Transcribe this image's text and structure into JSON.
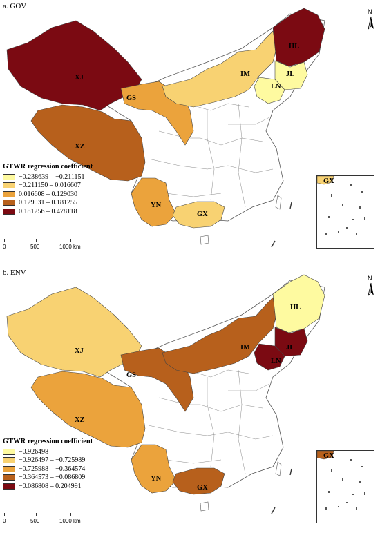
{
  "panels": [
    {
      "title": "a. GOV",
      "legend": {
        "title": "GTWR regression coefficient",
        "classes": [
          {
            "label": "−0.238639 – −0.211151",
            "color": "#fefaa0"
          },
          {
            "label": "−0.211150 – 0.016607",
            "color": "#f8d272"
          },
          {
            "label": "0.016608 – 0.129030",
            "color": "#eba33c"
          },
          {
            "label": "0.129031 – 0.181255",
            "color": "#b7601c"
          },
          {
            "label": "0.181256 – 0.478118",
            "color": "#7b0a12"
          }
        ]
      },
      "regions": {
        "HL": "#7b0a12",
        "JL": "#fefaa0",
        "LN": "#fefaa0",
        "IM": "#f8d272",
        "GS": "#eba33c",
        "XJ": "#7b0a12",
        "XZ": "#b7601c",
        "YN": "#eba33c",
        "GX": "#f8d272"
      },
      "inset_label": "GX",
      "inset_color": "#f8d272"
    },
    {
      "title": "b. ENV",
      "legend": {
        "title": "GTWR regression coefficient",
        "classes": [
          {
            "label": "−0.926498",
            "color": "#fefaa0"
          },
          {
            "label": "−0.926497 – −0.725989",
            "color": "#f8d272"
          },
          {
            "label": "−0.725988 – −0.364574",
            "color": "#eba33c"
          },
          {
            "label": "−0.364573 – −0.086809",
            "color": "#b7601c"
          },
          {
            "label": "−0.086808 – 0.204991",
            "color": "#7b0a12"
          }
        ]
      },
      "regions": {
        "HL": "#fefaa0",
        "JL": "#7b0a12",
        "LN": "#7b0a12",
        "IM": "#b7601c",
        "GS": "#b7601c",
        "XJ": "#f8d272",
        "XZ": "#eba33c",
        "YN": "#eba33c",
        "GX": "#b7601c"
      },
      "inset_label": "GX",
      "inset_color": "#b7601c"
    }
  ],
  "scale": {
    "zero": "0",
    "mid": "500",
    "end": "1000 km"
  },
  "north_label": "N"
}
